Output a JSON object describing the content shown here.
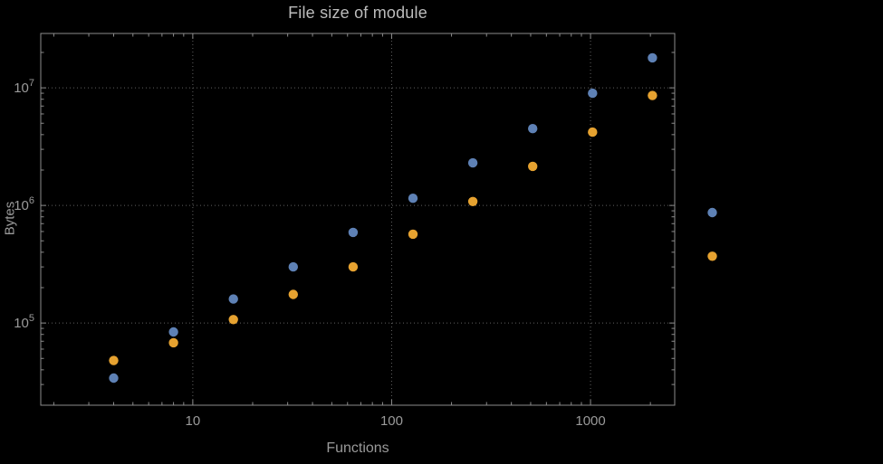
{
  "chart_data": {
    "type": "scatter",
    "title": "File size of module",
    "xlabel": "Functions",
    "ylabel": "Bytes",
    "x_scale": "log",
    "y_scale": "log",
    "xlim": [
      1.72,
      2650
    ],
    "ylim": [
      20000,
      29000000
    ],
    "x_major_ticks": [
      10,
      100,
      1000
    ],
    "x_tick_labels": [
      "10",
      "100",
      "1000"
    ],
    "y_major_ticks": [
      100000,
      1000000,
      10000000
    ],
    "y_tick_exponents": [
      5,
      6,
      7
    ],
    "grid": "dotted lines at major decades, both axes",
    "legend": "none",
    "series": [
      {
        "name": "series-blue",
        "color": "#5e81b5",
        "x": [
          4,
          8,
          16,
          32,
          64,
          128,
          256,
          512,
          1024,
          2048,
          4096
        ],
        "y": [
          34000,
          84000,
          160000,
          300000,
          590000,
          1150000,
          2300000,
          4500000,
          9000000,
          18000000,
          870000
        ]
      },
      {
        "name": "series-orange",
        "color": "#e6a230",
        "x": [
          4,
          8,
          16,
          32,
          64,
          128,
          256,
          512,
          1024,
          2048,
          4096
        ],
        "y": [
          48000,
          68000,
          107000,
          175000,
          300000,
          570000,
          1080000,
          2150000,
          4200000,
          8600000,
          370000
        ]
      }
    ],
    "layout_note": "rightmost point pair (x=4096) is plotted beyond the right frame edge"
  },
  "style": {
    "background": "#000000",
    "frame_color": "#8c8c8c",
    "grid_color": "#606060",
    "tick_label_color": "#9a9a9a",
    "title_color": "#bcbcbc",
    "point_radius": 5.2
  }
}
